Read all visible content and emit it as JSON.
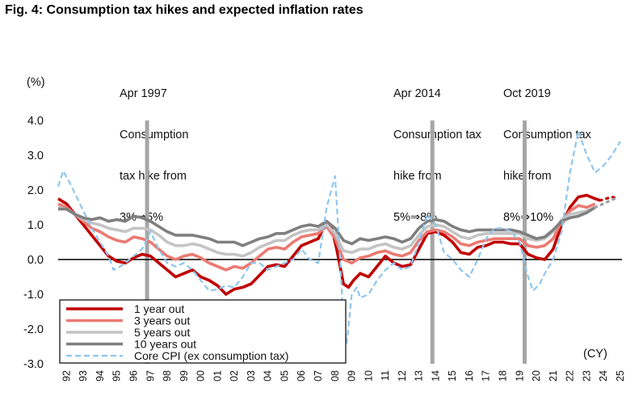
{
  "title": "Fig. 4: Consumption tax hikes and expected inflation rates",
  "annotations": [
    {
      "year": 1997.3,
      "lines": [
        "Apr 1997",
        "Consumption",
        "tax hike from",
        "3%⇒5%"
      ]
    },
    {
      "year": 2014.3,
      "lines": [
        "Apr 2014",
        "Consumption tax",
        "hike from",
        "5%⇒8%"
      ]
    },
    {
      "year": 2019.8,
      "lines": [
        "Oct 2019",
        "Consumption tax",
        "hike from",
        "8%⇒10%"
      ]
    }
  ],
  "chart_data": {
    "type": "line",
    "title": "Consumption tax hikes and expected inflation rates",
    "ylabel": "(%)",
    "xlabel": "(CY)",
    "ylim": [
      -3.0,
      4.0
    ],
    "yticks": [
      -3.0,
      -2.0,
      -1.0,
      0.0,
      1.0,
      2.0,
      3.0,
      4.0
    ],
    "ytick_labels": [
      "-3.0",
      "-2.0",
      "-1.0",
      "0.0",
      "1.0",
      "2.0",
      "3.0",
      "4.0"
    ],
    "xlim": [
      1992,
      2025.6
    ],
    "xtick_labels": [
      "92",
      "93",
      "94",
      "95",
      "96",
      "97",
      "98",
      "99",
      "00",
      "01",
      "02",
      "03",
      "04",
      "05",
      "06",
      "07",
      "08",
      "09",
      "10",
      "11",
      "12",
      "13",
      "14",
      "15",
      "16",
      "17",
      "18",
      "19",
      "20",
      "21",
      "22",
      "23",
      "24",
      "25"
    ],
    "event_lines": [
      1997.3,
      2014.3,
      2019.8
    ],
    "series": [
      {
        "name": "1 year out",
        "color": "#c00000",
        "dash": "solid",
        "width": 3.6,
        "x": [
          1992.0,
          1992.5,
          1993.0,
          1993.5,
          1994.0,
          1994.5,
          1995.0,
          1995.5,
          1996.0,
          1996.5,
          1997.0,
          1997.5,
          1998.0,
          1998.5,
          1999.0,
          1999.5,
          2000.0,
          2000.5,
          2001.0,
          2001.5,
          2002.0,
          2002.5,
          2003.0,
          2003.5,
          2004.0,
          2004.5,
          2005.0,
          2005.5,
          2006.0,
          2006.5,
          2007.0,
          2007.5,
          2008.0,
          2008.3,
          2008.6,
          2009.0,
          2009.3,
          2009.6,
          2010.0,
          2010.5,
          2011.0,
          2011.5,
          2012.0,
          2012.5,
          2013.0,
          2013.5,
          2014.0,
          2014.5,
          2015.0,
          2015.5,
          2016.0,
          2016.5,
          2017.0,
          2017.5,
          2018.0,
          2018.5,
          2019.0,
          2019.5,
          2020.0,
          2020.5,
          2021.0,
          2021.5,
          2022.0,
          2022.5,
          2023.0,
          2023.5,
          2024.0,
          2024.3
        ],
        "y": [
          1.75,
          1.6,
          1.3,
          1.0,
          0.7,
          0.4,
          0.1,
          -0.05,
          -0.1,
          0.05,
          0.15,
          0.1,
          -0.1,
          -0.3,
          -0.5,
          -0.4,
          -0.3,
          -0.5,
          -0.6,
          -0.75,
          -1.0,
          -0.85,
          -0.8,
          -0.7,
          -0.45,
          -0.2,
          -0.15,
          -0.2,
          0.1,
          0.4,
          0.5,
          0.6,
          1.1,
          0.9,
          0.3,
          -0.7,
          -0.8,
          -0.6,
          -0.4,
          -0.5,
          -0.2,
          0.1,
          -0.1,
          -0.2,
          -0.15,
          0.3,
          0.75,
          0.8,
          0.7,
          0.5,
          0.2,
          0.15,
          0.35,
          0.4,
          0.5,
          0.5,
          0.45,
          0.45,
          0.15,
          0.05,
          0.0,
          0.3,
          1.0,
          1.5,
          1.8,
          1.85,
          1.75,
          1.7
        ]
      },
      {
        "name": "3 years out",
        "color": "#ea7a72",
        "dash": "solid",
        "width": 3.6,
        "x": [
          1992.0,
          1992.5,
          1993.0,
          1993.5,
          1994.0,
          1994.5,
          1995.0,
          1995.5,
          1996.0,
          1996.5,
          1997.0,
          1997.5,
          1998.0,
          1998.5,
          1999.0,
          1999.5,
          2000.0,
          2000.5,
          2001.0,
          2001.5,
          2002.0,
          2002.5,
          2003.0,
          2003.5,
          2004.0,
          2004.5,
          2005.0,
          2005.5,
          2006.0,
          2006.5,
          2007.0,
          2007.5,
          2008.0,
          2008.5,
          2009.0,
          2009.5,
          2010.0,
          2010.5,
          2011.0,
          2011.5,
          2012.0,
          2012.5,
          2013.0,
          2013.5,
          2014.0,
          2014.5,
          2015.0,
          2015.5,
          2016.0,
          2016.5,
          2017.0,
          2017.5,
          2018.0,
          2018.5,
          2019.0,
          2019.5,
          2020.0,
          2020.5,
          2021.0,
          2021.5,
          2022.0,
          2022.5,
          2023.0,
          2023.5,
          2024.0
        ],
        "y": [
          1.6,
          1.5,
          1.3,
          1.1,
          0.9,
          0.8,
          0.65,
          0.55,
          0.5,
          0.65,
          0.6,
          0.5,
          0.3,
          0.1,
          0.0,
          0.1,
          0.15,
          0.05,
          -0.1,
          -0.2,
          -0.3,
          -0.2,
          -0.25,
          -0.1,
          0.1,
          0.3,
          0.35,
          0.3,
          0.5,
          0.65,
          0.7,
          0.75,
          0.95,
          0.6,
          0.0,
          -0.1,
          0.05,
          0.1,
          0.2,
          0.25,
          0.15,
          0.1,
          0.2,
          0.55,
          0.8,
          0.85,
          0.8,
          0.65,
          0.45,
          0.4,
          0.5,
          0.55,
          0.6,
          0.6,
          0.6,
          0.6,
          0.4,
          0.35,
          0.4,
          0.6,
          1.1,
          1.4,
          1.55,
          1.5,
          1.6
        ]
      },
      {
        "name": "5 years out",
        "color": "#c4c4c4",
        "dash": "solid",
        "width": 3.6,
        "x": [
          1992.0,
          1992.5,
          1993.0,
          1993.5,
          1994.0,
          1994.5,
          1995.0,
          1995.5,
          1996.0,
          1996.5,
          1997.0,
          1997.5,
          1998.0,
          1998.5,
          1999.0,
          1999.5,
          2000.0,
          2000.5,
          2001.0,
          2001.5,
          2002.0,
          2002.5,
          2003.0,
          2003.5,
          2004.0,
          2004.5,
          2005.0,
          2005.5,
          2006.0,
          2006.5,
          2007.0,
          2007.5,
          2008.0,
          2008.5,
          2009.0,
          2009.5,
          2010.0,
          2010.5,
          2011.0,
          2011.5,
          2012.0,
          2012.5,
          2013.0,
          2013.5,
          2014.0,
          2014.5,
          2015.0,
          2015.5,
          2016.0,
          2016.5,
          2017.0,
          2017.5,
          2018.0,
          2018.5,
          2019.0,
          2019.5,
          2020.0,
          2020.5,
          2021.0,
          2021.5,
          2022.0,
          2022.5,
          2023.0,
          2023.5,
          2024.0
        ],
        "y": [
          1.5,
          1.45,
          1.3,
          1.15,
          1.05,
          1.0,
          0.9,
          0.85,
          0.8,
          0.9,
          0.9,
          0.85,
          0.7,
          0.5,
          0.4,
          0.4,
          0.45,
          0.4,
          0.3,
          0.2,
          0.15,
          0.15,
          0.1,
          0.2,
          0.35,
          0.45,
          0.55,
          0.55,
          0.7,
          0.8,
          0.85,
          0.85,
          1.0,
          0.75,
          0.25,
          0.2,
          0.3,
          0.3,
          0.4,
          0.45,
          0.35,
          0.3,
          0.4,
          0.7,
          0.95,
          1.0,
          0.95,
          0.8,
          0.65,
          0.6,
          0.7,
          0.75,
          0.75,
          0.75,
          0.75,
          0.75,
          0.6,
          0.55,
          0.6,
          0.8,
          1.15,
          1.3,
          1.35,
          1.4,
          1.5
        ]
      },
      {
        "name": "10 years out",
        "color": "#7f7f7f",
        "dash": "solid",
        "width": 3.6,
        "x": [
          1992.0,
          1992.5,
          1993.0,
          1993.5,
          1994.0,
          1994.5,
          1995.0,
          1995.5,
          1996.0,
          1996.5,
          1997.0,
          1997.5,
          1998.0,
          1998.5,
          1999.0,
          1999.5,
          2000.0,
          2000.5,
          2001.0,
          2001.5,
          2002.0,
          2002.5,
          2003.0,
          2003.5,
          2004.0,
          2004.5,
          2005.0,
          2005.5,
          2006.0,
          2006.5,
          2007.0,
          2007.5,
          2008.0,
          2008.5,
          2009.0,
          2009.5,
          2010.0,
          2010.5,
          2011.0,
          2011.5,
          2012.0,
          2012.5,
          2013.0,
          2013.5,
          2014.0,
          2014.5,
          2015.0,
          2015.5,
          2016.0,
          2016.5,
          2017.0,
          2017.5,
          2018.0,
          2018.5,
          2019.0,
          2019.5,
          2020.0,
          2020.5,
          2021.0,
          2021.5,
          2022.0,
          2022.5,
          2023.0,
          2023.5,
          2024.0
        ],
        "y": [
          1.45,
          1.45,
          1.3,
          1.2,
          1.15,
          1.2,
          1.1,
          1.15,
          1.1,
          1.25,
          1.2,
          1.1,
          0.95,
          0.8,
          0.7,
          0.7,
          0.7,
          0.65,
          0.6,
          0.5,
          0.5,
          0.5,
          0.4,
          0.5,
          0.6,
          0.65,
          0.75,
          0.75,
          0.85,
          0.95,
          1.0,
          0.95,
          1.1,
          0.9,
          0.55,
          0.45,
          0.6,
          0.55,
          0.6,
          0.65,
          0.6,
          0.5,
          0.6,
          0.9,
          1.1,
          1.15,
          1.1,
          0.95,
          0.85,
          0.8,
          0.85,
          0.85,
          0.85,
          0.85,
          0.85,
          0.8,
          0.7,
          0.6,
          0.65,
          0.85,
          1.1,
          1.2,
          1.25,
          1.35,
          1.5
        ]
      },
      {
        "name": "Core CPI (ex consumption tax)",
        "color": "#8ec6ee",
        "dash": "dashed",
        "width": 2.2,
        "x": [
          1992.0,
          1992.3,
          1992.7,
          1993.0,
          1993.5,
          1994.0,
          1994.5,
          1995.0,
          1995.3,
          1995.7,
          1996.0,
          1996.5,
          1997.0,
          1997.5,
          1998.0,
          1998.5,
          1999.0,
          1999.5,
          2000.0,
          2000.5,
          2001.0,
          2001.5,
          2002.0,
          2002.5,
          2003.0,
          2003.5,
          2004.0,
          2004.5,
          2005.0,
          2005.5,
          2006.0,
          2006.5,
          2007.0,
          2007.5,
          2008.0,
          2008.5,
          2008.8,
          2009.0,
          2009.2,
          2009.5,
          2009.8,
          2010.0,
          2010.5,
          2011.0,
          2011.5,
          2012.0,
          2012.5,
          2013.0,
          2013.5,
          2014.0,
          2014.5,
          2015.0,
          2015.5,
          2016.0,
          2016.5,
          2017.0,
          2017.5,
          2018.0,
          2018.5,
          2019.0,
          2019.5,
          2020.0,
          2020.3,
          2020.7,
          2021.0,
          2021.5,
          2022.0,
          2022.5,
          2023.0,
          2023.5,
          2024.0,
          2024.5,
          2025.0,
          2025.5
        ],
        "y": [
          2.1,
          2.55,
          2.2,
          1.9,
          1.4,
          0.9,
          0.5,
          0.1,
          -0.3,
          -0.2,
          -0.1,
          0.1,
          0.3,
          0.8,
          0.3,
          -0.1,
          -0.2,
          -0.1,
          -0.3,
          -0.6,
          -0.9,
          -0.85,
          -0.75,
          -0.8,
          -0.5,
          -0.1,
          -0.1,
          -0.3,
          -0.2,
          -0.1,
          0.0,
          0.3,
          0.0,
          -0.1,
          1.5,
          2.4,
          0.0,
          -1.8,
          -2.4,
          -1.0,
          -0.8,
          -1.1,
          -1.0,
          -0.6,
          -0.3,
          -0.1,
          -0.3,
          -0.2,
          0.5,
          1.3,
          1.0,
          0.2,
          0.0,
          -0.3,
          -0.5,
          0.0,
          0.6,
          0.9,
          0.9,
          0.8,
          0.5,
          -0.5,
          -0.9,
          -0.7,
          -0.4,
          0.0,
          0.8,
          2.5,
          3.7,
          3.0,
          2.5,
          2.7,
          3.0,
          3.4
        ]
      },
      {
        "name": "1 year out projection",
        "color": "#c00000",
        "dash": "dotted",
        "width": 3.2,
        "x": [
          2024.3,
          2025.0,
          2025.4
        ],
        "y": [
          1.7,
          1.8,
          1.75
        ]
      },
      {
        "name": "10 years out projection",
        "color": "#9f9f9f",
        "dash": "dotted",
        "width": 3.2,
        "x": [
          2024.0,
          2024.7,
          2025.4
        ],
        "y": [
          1.5,
          1.65,
          1.8
        ]
      }
    ],
    "legend": [
      {
        "label": "1 year out",
        "color": "#c00000",
        "dash": "solid"
      },
      {
        "label": "3 years out",
        "color": "#ea7a72",
        "dash": "solid"
      },
      {
        "label": "5 years out",
        "color": "#c4c4c4",
        "dash": "solid"
      },
      {
        "label": "10 years out",
        "color": "#7f7f7f",
        "dash": "solid"
      },
      {
        "label": "Core CPI (ex consumption tax)",
        "color": "#8ec6ee",
        "dash": "dashed"
      }
    ]
  }
}
